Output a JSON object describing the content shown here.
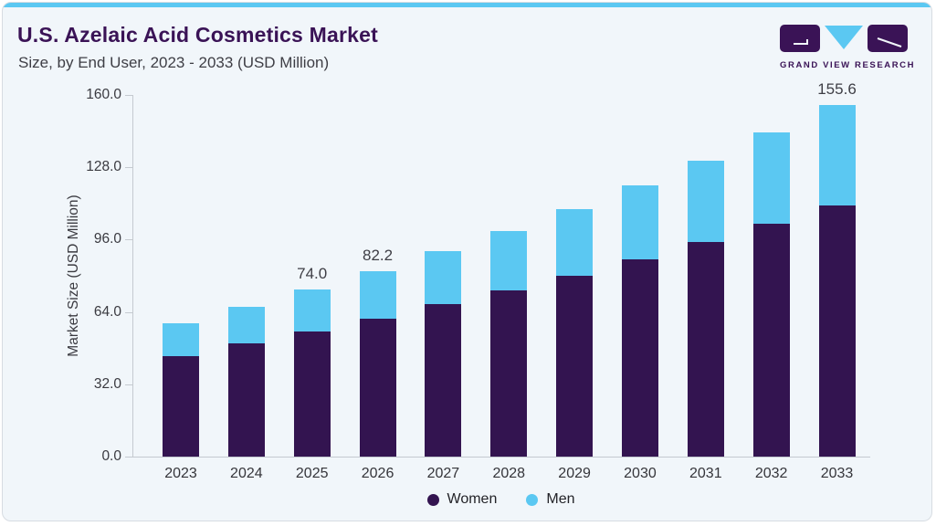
{
  "header": {
    "title": "U.S. Azelaic Acid Cosmetics Market",
    "subtitle": "Size, by End User, 2023 - 2033 (USD Million)"
  },
  "logo": {
    "text": "GRAND VIEW RESEARCH"
  },
  "colors": {
    "accent_blue": "#5bc8f2",
    "women_purple": "#331450",
    "men_blue": "#5bc8f2",
    "title_purple": "#3a1356",
    "card_background": "#f1f6fa",
    "axis_line": "#c5cad0",
    "text_dark": "#3e3e45"
  },
  "chart_data": {
    "type": "bar",
    "stacked": true,
    "title": "U.S. Azelaic Acid Cosmetics Market Size, by End User, 2023 - 2033 (USD Million)",
    "categories": [
      "2023",
      "2024",
      "2025",
      "2026",
      "2027",
      "2028",
      "2029",
      "2030",
      "2031",
      "2032",
      "2033"
    ],
    "series": [
      {
        "name": "Women",
        "color": "#331450",
        "values": [
          44.6,
          50.1,
          55.3,
          61.2,
          67.4,
          73.4,
          80.2,
          87.4,
          95.1,
          103.1,
          111.2
        ]
      },
      {
        "name": "Men",
        "color": "#5bc8f2",
        "values": [
          14.4,
          16.1,
          18.7,
          21.0,
          23.4,
          26.4,
          29.5,
          32.7,
          35.9,
          40.2,
          44.4
        ]
      }
    ],
    "totals": [
      59.0,
      66.2,
      74.0,
      82.2,
      90.8,
      99.8,
      109.7,
      120.1,
      131.0,
      143.3,
      155.6
    ],
    "bar_labels": [
      "",
      "",
      "74.0",
      "82.2",
      "",
      "",
      "",
      "",
      "",
      "",
      "155.6"
    ],
    "xlabel": "",
    "ylabel": "Market Size (USD Million)",
    "ylim": [
      0,
      160
    ],
    "yticks": [
      "0.0",
      "32.0",
      "64.0",
      "96.0",
      "128.0",
      "160.0"
    ],
    "grid": false,
    "legend": {
      "position": "bottom",
      "entries": [
        "Women",
        "Men"
      ]
    }
  }
}
